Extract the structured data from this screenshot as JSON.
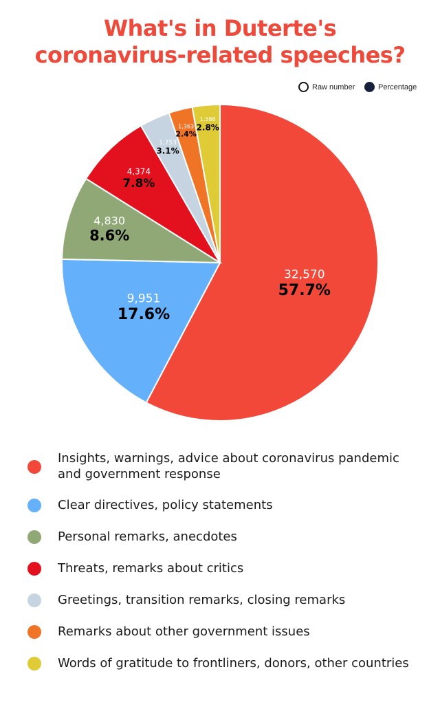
{
  "title_lines": [
    "What's in Duterte's",
    "coronavirus-related speeches?"
  ],
  "key": {
    "raw_label": "Raw number",
    "pct_label": "Percentage",
    "pct_color": "#17203a"
  },
  "chart_data": {
    "type": "pie",
    "title": "What's in Duterte's coronavirus-related speeches?",
    "slices": [
      {
        "label": "Insights, warnings, advice about coronavirus pandemic and government response",
        "raw": "32,570",
        "value": 32570,
        "pct": "57.7%",
        "color": "#f2483a"
      },
      {
        "label": "Clear directives, policy statements",
        "raw": "9,951",
        "value": 9951,
        "pct": "17.6%",
        "color": "#64b0fb"
      },
      {
        "label": "Personal remarks, anecdotes",
        "raw": "4,830",
        "value": 4830,
        "pct": "8.6%",
        "color": "#8fa876"
      },
      {
        "label": "Threats, remarks about critics",
        "raw": "4,374",
        "value": 4374,
        "pct": "7.8%",
        "color": "#e3101e"
      },
      {
        "label": "Greetings, transition remarks, closing remarks",
        "raw": "1,753",
        "value": 1753,
        "pct": "3.1%",
        "color": "#c6d4e1"
      },
      {
        "label": "Remarks about other government issues",
        "raw": "1,363",
        "value": 1363,
        "pct": "2.4%",
        "color": "#f07426"
      },
      {
        "label": "Words of gratitude to frontliners, donors, other countries",
        "raw": "1,586",
        "value": 1586,
        "pct": "2.8%",
        "color": "#dfcb36"
      }
    ],
    "legend_placement": "bottom"
  }
}
